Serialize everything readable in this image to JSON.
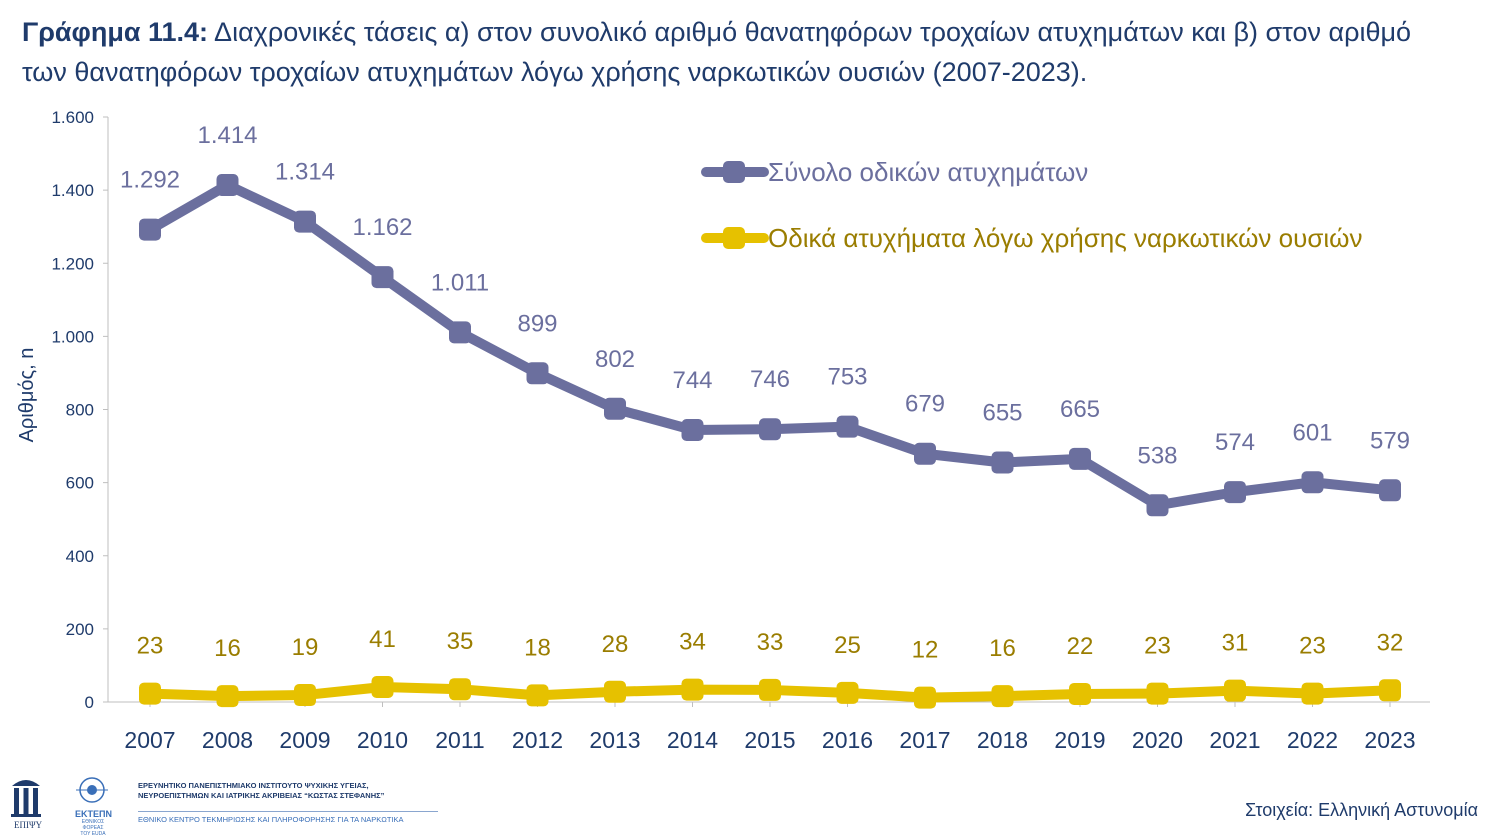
{
  "title": {
    "prefix": "Γράφημα 11.4:",
    "text": "Διαχρονικές τάσεις α) στον συνολικό αριθμό θανατηφόρων τροχαίων ατυχημάτων και β) στον αριθμό των θανατηφόρων τροχαίων ατυχημάτων λόγω χρήσης ναρκωτικών ουσιών (2007-2023)."
  },
  "source": "Στοιχεία: Ελληνική Αστυνομία",
  "footer": {
    "logo1_label": "ΕΠΙΨΥ",
    "logo2_label": "ΕΚΤΕΠΝ",
    "logo2_sub": "ΕΘΝΙΚΟΣ ΦΟΡΕΑΣ ΤΟΥ EUDA",
    "institute_line1": "ΕΡΕΥΝΗΤΙΚΟ ΠΑΝΕΠΙΣΤΗΜΙΑΚΟ ΙΝΣΤΙΤΟΥΤΟ ΨΥΧΙΚΗΣ ΥΓΕΙΑΣ,",
    "institute_line2": "ΝΕΥΡΟΕΠΙΣΤΗΜΩΝ ΚΑΙ ΙΑΤΡΙΚΗΣ ΑΚΡΙΒΕΙΑΣ “ΚΩΣΤΑΣ ΣΤΕΦΑΝΗΣ”",
    "institute_sub": "ΕΘΝΙΚΟ ΚΕΝΤΡΟ ΤΕΚΜΗΡΙΩΣΗΣ ΚΑΙ ΠΛΗΡΟΦΟΡΗΣΗΣ ΓΙΑ ΤΑ ΝΑΡΚΩΤΙΚΑ"
  },
  "chart_data": {
    "type": "line",
    "ylabel": "Αριθμός, n",
    "xlabel": "",
    "ylim": [
      0,
      1600
    ],
    "yticks": [
      0,
      200,
      400,
      600,
      800,
      1000,
      1200,
      1400,
      1600
    ],
    "ytick_labels": [
      "0",
      "200",
      "400",
      "600",
      "800",
      "1.000",
      "1.200",
      "1.400",
      "1.600"
    ],
    "categories": [
      "2007",
      "2008",
      "2009",
      "2010",
      "2011",
      "2012",
      "2013",
      "2014",
      "2015",
      "2016",
      "2017",
      "2018",
      "2019",
      "2020",
      "2021",
      "2022",
      "2023"
    ],
    "legend_position": "top-right",
    "grid": false,
    "series": [
      {
        "name": "Σύνολο οδικών ατυχημάτων",
        "color": "#6b6f9e",
        "label_color": "#6b6f9e",
        "values": [
          1292,
          1414,
          1314,
          1162,
          1011,
          899,
          802,
          744,
          746,
          753,
          679,
          655,
          665,
          538,
          574,
          601,
          579
        ],
        "labels": [
          "1.292",
          "1.414",
          "1.314",
          "1.162",
          "1.011",
          "899",
          "802",
          "744",
          "746",
          "753",
          "679",
          "655",
          "665",
          "538",
          "574",
          "601",
          "579"
        ]
      },
      {
        "name": "Οδικά ατυχήματα λόγω χρήσης ναρκωτικών ουσιών",
        "color": "#e6c100",
        "label_color": "#9a7d00",
        "values": [
          23,
          16,
          19,
          41,
          35,
          18,
          28,
          34,
          33,
          25,
          12,
          16,
          22,
          23,
          31,
          23,
          32
        ],
        "labels": [
          "23",
          "16",
          "19",
          "41",
          "35",
          "18",
          "28",
          "34",
          "33",
          "25",
          "12",
          "16",
          "22",
          "23",
          "31",
          "23",
          "32"
        ]
      }
    ]
  }
}
